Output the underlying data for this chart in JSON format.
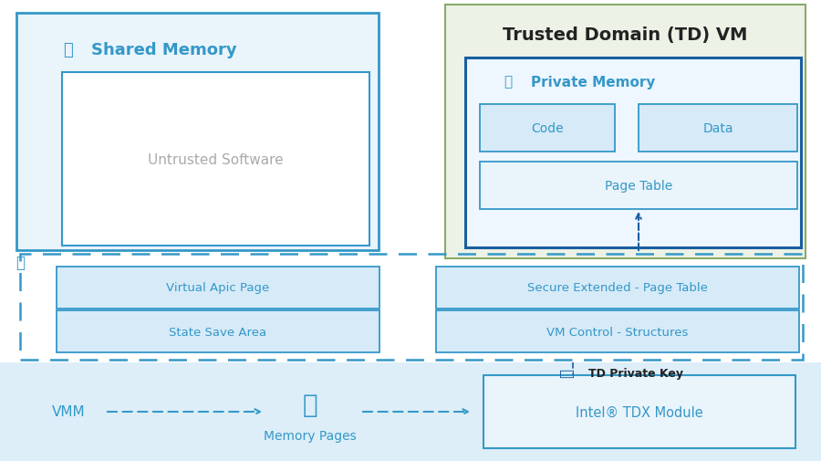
{
  "bg_color": "#ffffff",
  "light_blue_fill": "#eaf4fb",
  "blue_border": "#3498c8",
  "dark_blue_border": "#1a5fa0",
  "box_fill": "#d6eaf8",
  "page_table_fill": "#eaf4fb",
  "private_mem_fill": "#eef6ff",
  "green_bg_fill": "#edf2e6",
  "green_border": "#8aaa6a",
  "bottom_fill": "#ddeef8",
  "text_blue": "#3498c8",
  "text_dark": "#222222",
  "text_gray": "#aaaaaa",
  "shared_memory_title": "Shared Memory",
  "untrusted_software": "Untrusted Software",
  "td_vm_title": "Trusted Domain (TD) VM",
  "private_memory_title": "Private Memory",
  "code_label": "Code",
  "data_label": "Data",
  "page_table_label": "Page Table",
  "virtual_apic_label": "Virtual Apic Page",
  "state_save_label": "State Save Area",
  "secure_ext_label": "Secure Extended - Page Table",
  "vm_control_label": "VM Control - Structures",
  "td_private_key_label": "TD Private Key",
  "vmm_label": "VMM",
  "memory_pages_label": "Memory Pages",
  "intel_tdx_label": "Intel® TDX Module"
}
